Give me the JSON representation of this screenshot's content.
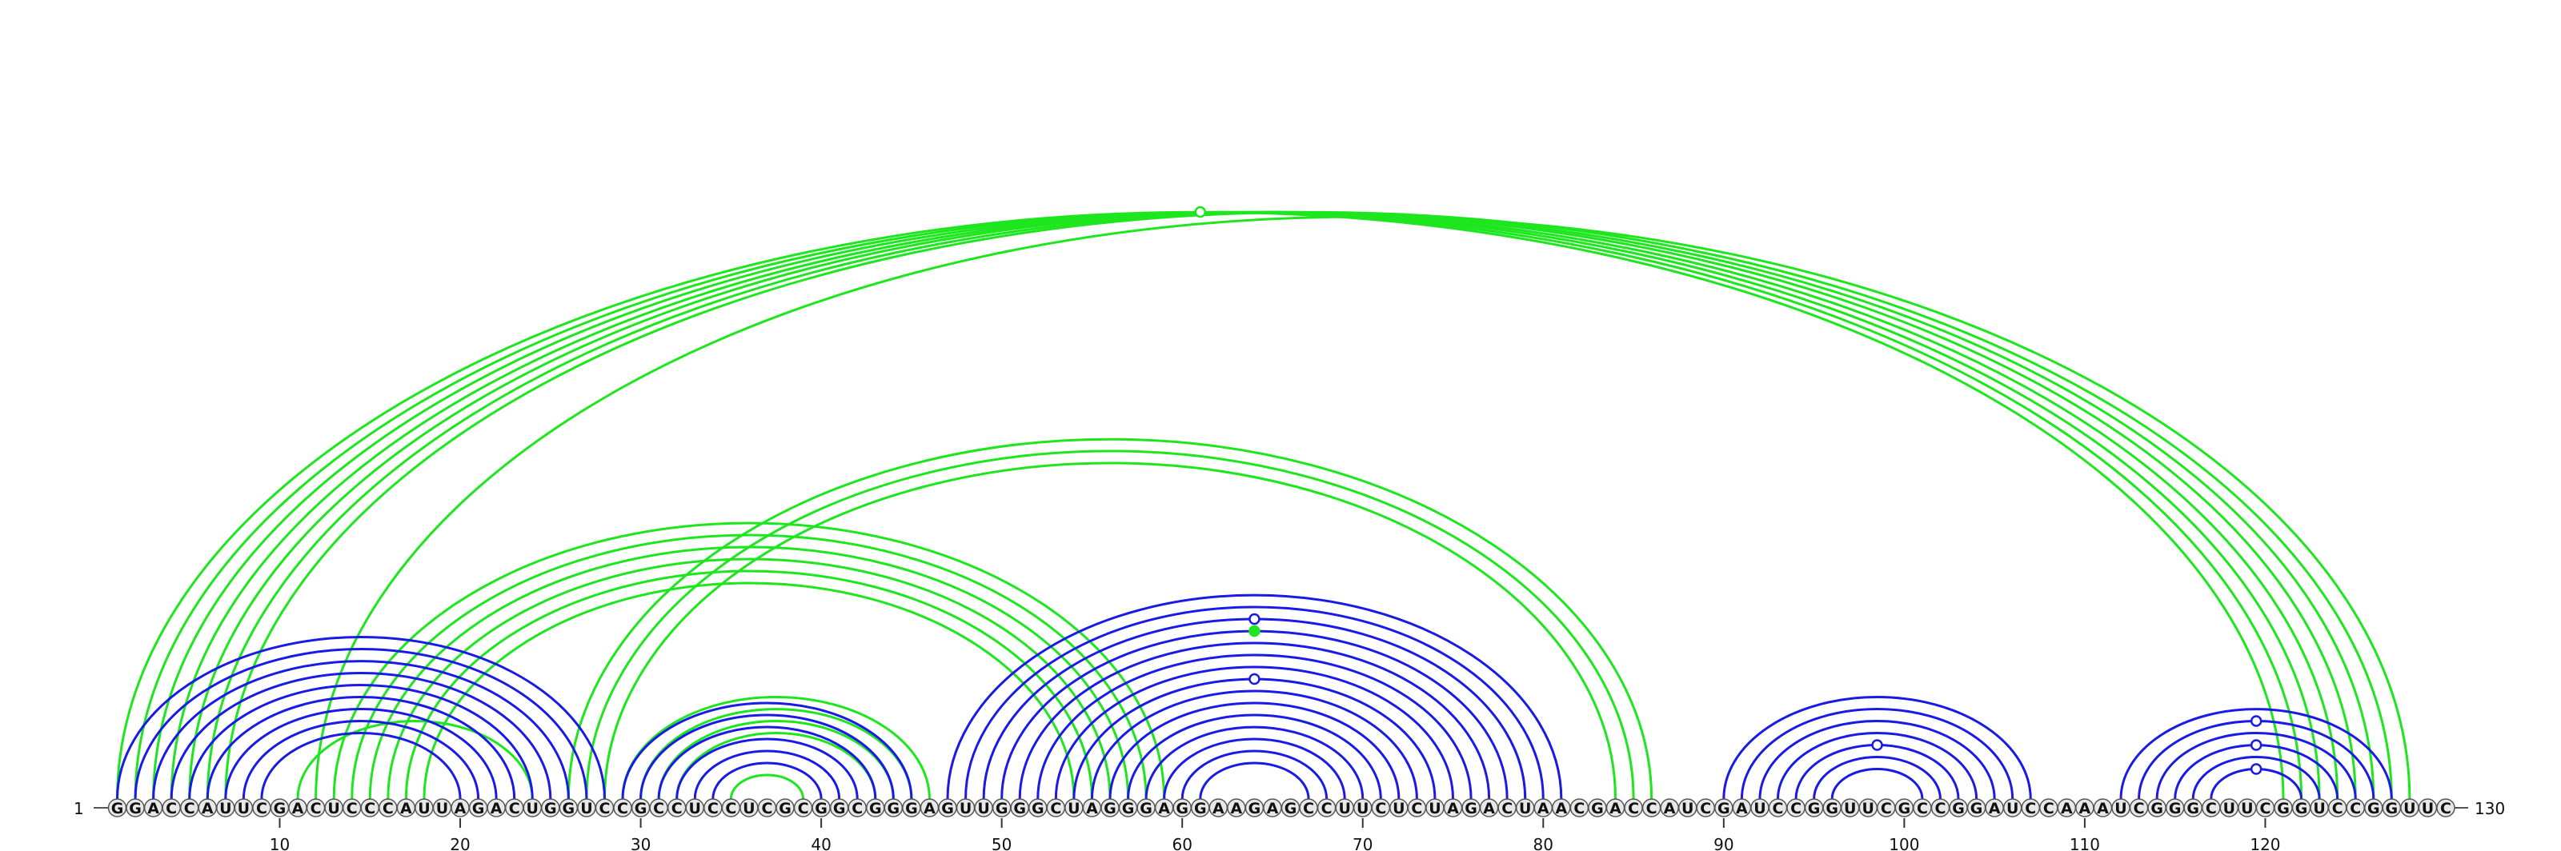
{
  "sequence": "GGACCAUUCGACUCCCAUUAGACUGGUCCGCCUCCUCGCGGCGGGAGUUGGGCUAGGGAGGAAGAGCCUUCUCUAGACUAACGACCAUCGAUCCGGUUCGCCGGAUCCAAAUCGGGCUUCGGUCCGGUUC",
  "end_labels": {
    "start": "1",
    "end": "130"
  },
  "ticks": [
    10,
    20,
    30,
    40,
    50,
    60,
    70,
    80,
    90,
    100,
    110,
    120
  ],
  "colors": {
    "blue": "#1a1ae6",
    "green": "#1ee61e",
    "base_fill": "#e8e8e8",
    "base_stroke": "#555555"
  },
  "arcs": {
    "blue": [
      [
        1,
        28
      ],
      [
        2,
        27
      ],
      [
        3,
        26
      ],
      [
        4,
        25
      ],
      [
        5,
        24
      ],
      [
        6,
        23
      ],
      [
        7,
        22
      ],
      [
        8,
        21
      ],
      [
        9,
        20
      ],
      [
        29,
        45
      ],
      [
        30,
        44
      ],
      [
        31,
        43
      ],
      [
        32,
        42
      ],
      [
        33,
        41
      ],
      [
        34,
        40
      ],
      [
        47,
        81
      ],
      [
        48,
        80
      ],
      [
        49,
        79
      ],
      [
        50,
        78
      ],
      [
        51,
        77
      ],
      [
        52,
        76
      ],
      [
        53,
        75
      ],
      [
        54,
        74
      ],
      [
        55,
        73
      ],
      [
        56,
        72
      ],
      [
        57,
        71
      ],
      [
        58,
        70
      ],
      [
        59,
        69
      ],
      [
        60,
        68
      ],
      [
        61,
        67
      ],
      [
        90,
        107
      ],
      [
        91,
        106
      ],
      [
        92,
        105
      ],
      [
        93,
        104
      ],
      [
        94,
        103
      ],
      [
        95,
        102
      ],
      [
        96,
        101
      ],
      [
        112,
        127
      ],
      [
        113,
        126
      ],
      [
        114,
        125
      ],
      [
        115,
        124
      ],
      [
        116,
        123
      ],
      [
        117,
        122
      ]
    ],
    "green": [
      [
        1,
        121
      ],
      [
        2,
        122
      ],
      [
        3,
        123
      ],
      [
        4,
        124
      ],
      [
        5,
        125
      ],
      [
        6,
        126
      ],
      [
        7,
        127
      ],
      [
        12,
        128
      ],
      [
        13,
        59
      ],
      [
        14,
        58
      ],
      [
        15,
        57
      ],
      [
        16,
        56
      ],
      [
        17,
        55
      ],
      [
        18,
        54
      ],
      [
        26,
        86
      ],
      [
        27,
        85
      ],
      [
        28,
        84
      ],
      [
        29,
        46
      ],
      [
        30,
        45
      ],
      [
        31,
        44
      ],
      [
        32,
        43
      ],
      [
        11,
        24
      ],
      [
        35,
        39
      ]
    ]
  },
  "markers": [
    {
      "arc": "green",
      "pair": [
        1,
        121
      ],
      "filled": false
    },
    {
      "arc": "blue",
      "pair": [
        49,
        79
      ],
      "filled": false
    },
    {
      "arc": "green",
      "pair": [
        50,
        78
      ],
      "filled": true
    },
    {
      "arc": "blue",
      "pair": [
        54,
        74
      ],
      "filled": false
    },
    {
      "arc": "blue",
      "pair": [
        94,
        103
      ],
      "filled": false
    },
    {
      "arc": "blue",
      "pair": [
        113,
        126
      ],
      "filled": false
    },
    {
      "arc": "blue",
      "pair": [
        115,
        124
      ],
      "filled": false
    },
    {
      "arc": "blue",
      "pair": [
        117,
        122
      ],
      "filled": false
    }
  ]
}
